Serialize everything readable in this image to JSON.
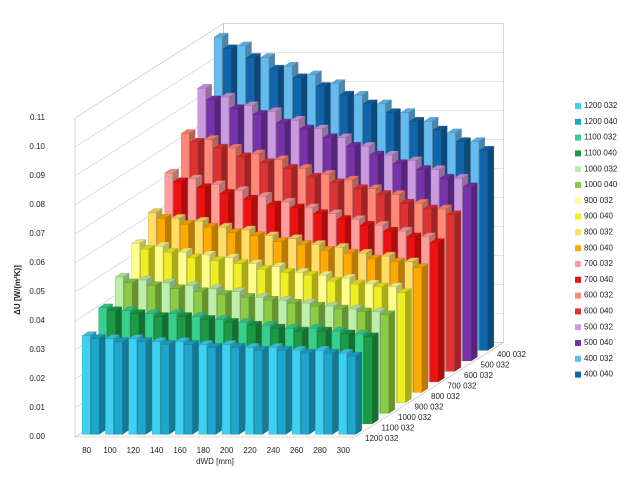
{
  "chart_data": {
    "type": "bar3d",
    "y_label": "ΔU [W/(m²K)]",
    "x_label": "dWD [mm]",
    "categories": [
      "80",
      "100",
      "120",
      "140",
      "160",
      "180",
      "200",
      "220",
      "240",
      "260",
      "280",
      "300"
    ],
    "ylim": [
      0,
      0.11
    ],
    "yticks": [
      {
        "value": 0,
        "label": "0.00"
      },
      {
        "value": 0.01,
        "label": "0.01"
      },
      {
        "value": 0.02,
        "label": "0.02"
      },
      {
        "value": 0.03,
        "label": "0.03"
      },
      {
        "value": 0.04,
        "label": "0.04"
      },
      {
        "value": 0.05,
        "label": "0.05"
      },
      {
        "value": 0.06,
        "label": "0.06"
      },
      {
        "value": 0.07,
        "label": "0.07"
      },
      {
        "value": 0.08,
        "label": "0.08"
      },
      {
        "value": 0.09,
        "label": "0.09"
      },
      {
        "value": 0.1,
        "label": "0.10"
      },
      {
        "value": 0.11,
        "label": "0.11"
      }
    ],
    "grid": true,
    "legend": "right",
    "series": [
      {
        "name": "1200 032",
        "color": "#3dd0f0",
        "values": [
          0.034,
          0.033,
          0.033,
          0.032,
          0.032,
          0.031,
          0.031,
          0.03,
          0.03,
          0.029,
          0.029,
          0.028
        ]
      },
      {
        "name": "1200 040",
        "color": "#1ea6cc",
        "values": [
          0.033,
          0.032,
          0.032,
          0.031,
          0.031,
          0.03,
          0.03,
          0.029,
          0.029,
          0.028,
          0.028,
          0.027
        ]
      },
      {
        "name": "1100 032",
        "color": "#36d08c",
        "values": [
          0.04,
          0.039,
          0.038,
          0.038,
          0.037,
          0.036,
          0.035,
          0.034,
          0.033,
          0.033,
          0.032,
          0.031
        ]
      },
      {
        "name": "1100 040",
        "color": "#1c9a44",
        "values": [
          0.039,
          0.038,
          0.037,
          0.037,
          0.036,
          0.035,
          0.034,
          0.033,
          0.032,
          0.032,
          0.031,
          0.03
        ]
      },
      {
        "name": "1000 032",
        "color": "#bdeeaa",
        "values": [
          0.047,
          0.046,
          0.045,
          0.044,
          0.043,
          0.042,
          0.04,
          0.039,
          0.038,
          0.037,
          0.036,
          0.035
        ]
      },
      {
        "name": "1000 040",
        "color": "#8ccc44",
        "values": [
          0.045,
          0.044,
          0.043,
          0.042,
          0.041,
          0.04,
          0.039,
          0.038,
          0.037,
          0.036,
          0.035,
          0.034
        ]
      },
      {
        "name": "900 032",
        "color": "#ffff8c",
        "values": [
          0.055,
          0.054,
          0.052,
          0.051,
          0.05,
          0.048,
          0.047,
          0.045,
          0.044,
          0.043,
          0.041,
          0.04
        ]
      },
      {
        "name": "900 040",
        "color": "#eeee22",
        "values": [
          0.053,
          0.052,
          0.05,
          0.049,
          0.048,
          0.046,
          0.045,
          0.044,
          0.042,
          0.041,
          0.04,
          0.038
        ]
      },
      {
        "name": "800 032",
        "color": "#ffdd66",
        "values": [
          0.062,
          0.06,
          0.059,
          0.057,
          0.056,
          0.054,
          0.053,
          0.051,
          0.05,
          0.048,
          0.047,
          0.045
        ]
      },
      {
        "name": "800 040",
        "color": "#ffaa00",
        "values": [
          0.06,
          0.058,
          0.057,
          0.055,
          0.054,
          0.052,
          0.051,
          0.049,
          0.048,
          0.046,
          0.045,
          0.043
        ]
      },
      {
        "name": "700 032",
        "color": "#ff9c9c",
        "values": [
          0.072,
          0.07,
          0.068,
          0.066,
          0.064,
          0.062,
          0.06,
          0.058,
          0.056,
          0.054,
          0.052,
          0.05
        ]
      },
      {
        "name": "700 040",
        "color": "#ee1111",
        "values": [
          0.069,
          0.067,
          0.065,
          0.063,
          0.061,
          0.06,
          0.058,
          0.056,
          0.054,
          0.052,
          0.05,
          0.048
        ]
      },
      {
        "name": "600 032",
        "color": "#ff8877",
        "values": [
          0.082,
          0.08,
          0.077,
          0.075,
          0.073,
          0.07,
          0.068,
          0.066,
          0.063,
          0.061,
          0.058,
          0.056
        ]
      },
      {
        "name": "600 040",
        "color": "#dd3333",
        "values": [
          0.079,
          0.077,
          0.074,
          0.072,
          0.07,
          0.067,
          0.065,
          0.063,
          0.061,
          0.058,
          0.056,
          0.054
        ]
      },
      {
        "name": "500 032",
        "color": "#cc9ade",
        "values": [
          0.094,
          0.091,
          0.088,
          0.086,
          0.083,
          0.08,
          0.077,
          0.074,
          0.071,
          0.069,
          0.066,
          0.063
        ]
      },
      {
        "name": "500 040",
        "color": "#7733aa",
        "values": [
          0.09,
          0.087,
          0.085,
          0.082,
          0.08,
          0.077,
          0.074,
          0.071,
          0.068,
          0.066,
          0.063,
          0.06
        ]
      },
      {
        "name": "400 032",
        "color": "#66bbee",
        "values": [
          0.108,
          0.105,
          0.101,
          0.098,
          0.095,
          0.092,
          0.088,
          0.085,
          0.082,
          0.079,
          0.075,
          0.072
        ]
      },
      {
        "name": "400 040",
        "color": "#1166aa",
        "values": [
          0.104,
          0.101,
          0.097,
          0.094,
          0.091,
          0.088,
          0.085,
          0.082,
          0.079,
          0.076,
          0.072,
          0.069
        ]
      }
    ]
  }
}
